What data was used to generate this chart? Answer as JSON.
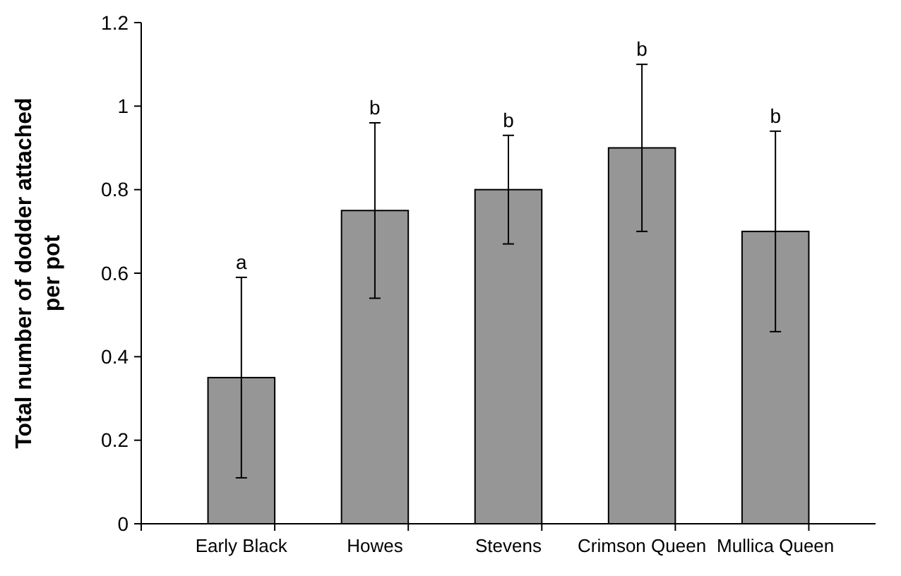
{
  "chart_data": {
    "type": "bar",
    "ylabel": "Total number of dodder attached per pot",
    "categories": [
      "Early Black",
      "Howes",
      "Stevens",
      "Crimson Queen",
      "Mullica Queen"
    ],
    "values": [
      0.35,
      0.75,
      0.8,
      0.9,
      0.7
    ],
    "errors": [
      0.24,
      0.21,
      0.13,
      0.2,
      0.24
    ],
    "color": "#969696",
    "ylim": [
      0,
      1.2
    ],
    "yticks": [
      0,
      0.2,
      0.4,
      0.6,
      0.8,
      1,
      1.2
    ],
    "grid": false,
    "annotations": [
      {
        "text": "a",
        "x": "Early Black",
        "y": 0.59
      },
      {
        "text": "b",
        "x": "Howes",
        "y": 0.96
      },
      {
        "text": "b",
        "x": "Stevens",
        "y": 0.93
      },
      {
        "text": "b",
        "x": "Crimson Queen",
        "y": 1.1
      },
      {
        "text": "b",
        "x": "Mullica Queen",
        "y": 0.94
      }
    ]
  }
}
